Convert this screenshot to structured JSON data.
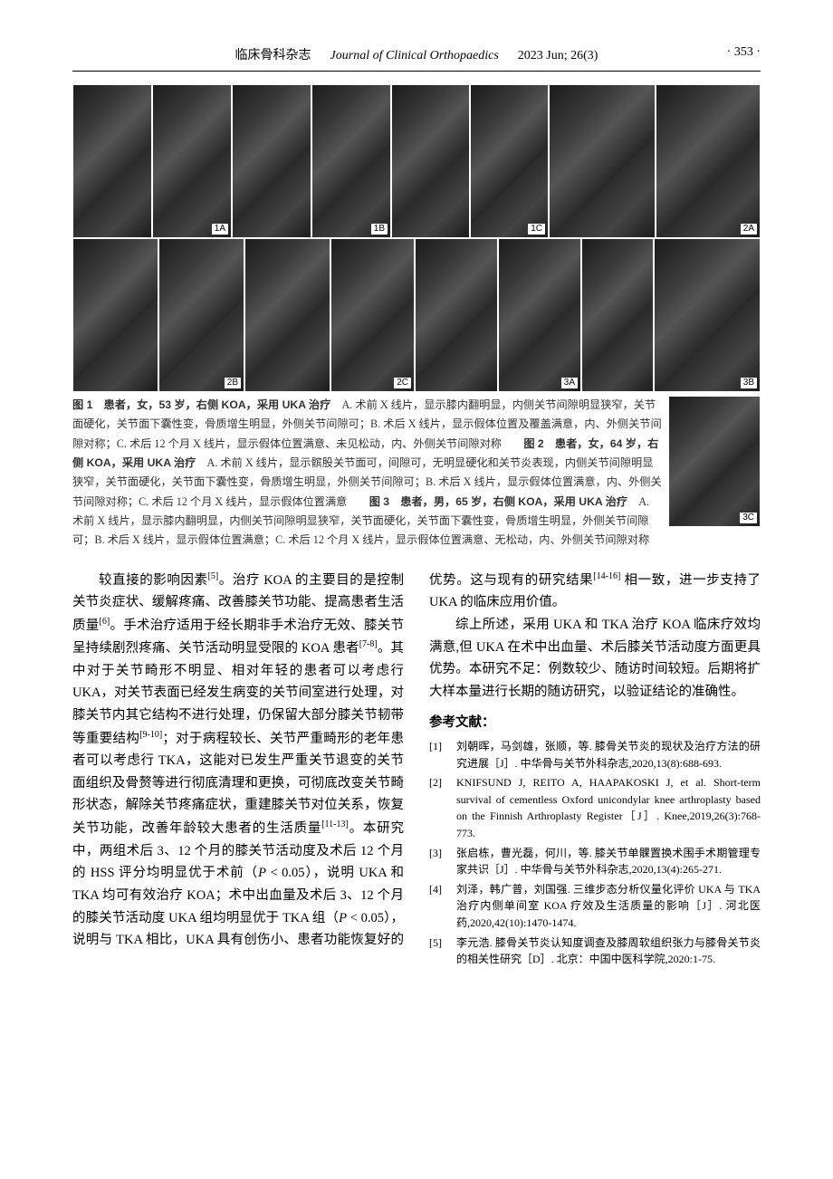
{
  "header": {
    "journal_cn": "临床骨科杂志",
    "journal_en": "Journal of Clinical Orthopaedics",
    "issue": "2023 Jun; 26(3)",
    "page_number": "· 353 ·"
  },
  "figure_labels": {
    "r1": [
      "1A",
      "1B",
      "1C",
      "2A"
    ],
    "r2": [
      "2B",
      "2C",
      "3A",
      "3B"
    ],
    "float": "3C"
  },
  "caption": {
    "fig1_label": "图 1　患者，女，53 岁，右侧 KOA，采用 UKA 治疗",
    "fig1_body": "　A. 术前 X 线片，显示膝内翻明显，内侧关节间隙明显狭窄，关节面硬化，关节面下囊性变，骨质增生明显，外侧关节间隙可；B. 术后 X 线片，显示假体位置及覆盖满意，内、外侧关节间隙对称；C. 术后 12 个月 X 线片，显示假体位置满意、未见松动，内、外侧关节间隙对称　　",
    "fig2_label": "图 2　患者，女，64 岁，右侧 KOA，采用 UKA 治疗",
    "fig2_body": "　A. 术前 X 线片，显示髌股关节面可，间隙可，无明显硬化和关节炎表现，内侧关节间隙明显狭窄，关节面硬化，关节面下囊性变，骨质增生明显，外侧关节间隙可；B. 术后 X 线片，显示假体位置满意，内、外侧关节间隙对称；C. 术后 12 个月 X 线片，显示假体位置满意　　",
    "fig3_label": "图 3　患者，男，65 岁，右侧 KOA，采用 UKA 治疗",
    "fig3_body": "　A. 术前 X 线片，显示膝内翻明显，内侧关节间隙明显狭窄，关节面硬化，关节面下囊性变，骨质增生明显，外侧关节间隙可；B. 术后 X 线片，显示假体位置满意；C. 术后 12 个月 X 线片，显示假体位置满意、无松动，内、外侧关节间隙对称"
  },
  "body": {
    "p1a": "较直接的影响因素",
    "p1_cite1": "[5]",
    "p1b": "。治疗 KOA 的主要目的是控制关节炎症状、缓解疼痛、改善膝关节功能、提高患者生活质量",
    "p1_cite2": "[6]",
    "p1c": "。手术治疗适用于经长期非手术治疗无效、膝关节呈持续剧烈疼痛、关节活动明显受限的 KOA 患者",
    "p1_cite3": "[7-8]",
    "p1d": "。其中对于关节畸形不明显、相对年轻的患者可以考虑行 UKA，对关节表面已经发生病变的关节间室进行处理，对膝关节内其它结构不进行处理，仍保留大部分膝关节韧带等重要结构",
    "p1_cite4": "[9-10]",
    "p1e": "；对于病程较长、关节严重畸形的老年患者可以考虑行 TKA，这能对已发生严重关节退变的关节面组织及骨赘等进行彻底清理和更换，可彻底改变关节畸形状态，解除关节疼痛症状，重建膝关节对位关系，恢复关节功能，改善年龄较大患者的生活质量",
    "p1_cite5": "[11-13]",
    "p1f": "。本研究中，两组术后 3、12 个月的膝关节活动度及术后 12 个月的 HSS 评分均明显优于术前（",
    "p1_p1": "P",
    "p1g": " < 0.05），说明 UKA 和 TKA 均可有效治疗 KOA；术中出血量及术后 3、12 个月的膝关节活动度 UKA 组均明显优于 TKA 组（",
    "p1_p2": "P",
    "p1h": " < 0.05），说明与 TKA 相比，UKA 具有创伤小、患者功能恢复好的优势。这与现有的研究结果",
    "p1_cite6": "[14-16]",
    "p1i": " 相一致，进一步支持了 UKA 的临床应用价值。",
    "p2": "综上所述，采用 UKA 和 TKA 治疗 KOA 临床疗效均满意,但 UKA 在术中出血量、术后膝关节活动度方面更具优势。本研究不足：例数较少、随访时间较短。后期将扩大样本量进行长期的随访研究，以验证结论的准确性。"
  },
  "references": {
    "heading": "参考文献：",
    "items": [
      {
        "num": "[1]",
        "text": "刘朝晖，马剑雄，张顺，等. 膝骨关节炎的现状及治疗方法的研究进展［J］. 中华骨与关节外科杂志,2020,13(8):688-693."
      },
      {
        "num": "[2]",
        "text": "KNIFSUND J, REITO A, HAAPAKOSKI J, et al. Short-term survival of cementless Oxford unicondylar knee arthroplasty based on the Finnish Arthroplasty Register［J］. Knee,2019,26(3):768-773."
      },
      {
        "num": "[3]",
        "text": "张启栋，曹光磊，何川，等. 膝关节单髁置换术围手术期管理专家共识［J］. 中华骨与关节外科杂志,2020,13(4):265-271."
      },
      {
        "num": "[4]",
        "text": "刘泽，韩广普，刘国强. 三维步态分析仪量化评价 UKA 与 TKA 治疗内侧单间室 KOA 疗效及生活质量的影响［J］. 河北医药,2020,42(10):1470-1474."
      },
      {
        "num": "[5]",
        "text": "李元浩. 膝骨关节炎认知度调查及膝周软组织张力与膝骨关节炎的相关性研究［D］. 北京：中国中医科学院,2020:1-75."
      }
    ]
  },
  "layout": {
    "row1_widths": [
      88,
      88,
      88,
      88,
      87,
      87,
      118,
      116
    ],
    "row2_widths": [
      95,
      95,
      95,
      93,
      92,
      92,
      80,
      118
    ]
  }
}
